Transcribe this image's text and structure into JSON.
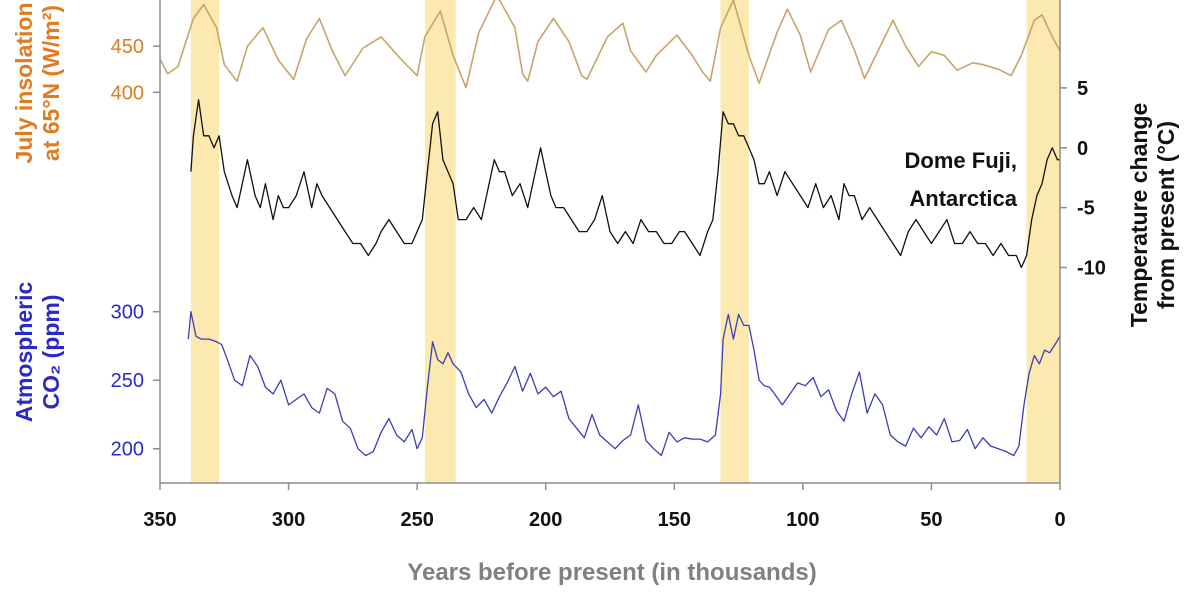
{
  "chart_data": {
    "type": "line",
    "x_axis": {
      "label": "Years before present (in thousands)",
      "range": [
        350,
        0
      ],
      "ticks": [
        350,
        300,
        250,
        200,
        150,
        100,
        50,
        0
      ],
      "reversed": true
    },
    "axes": {
      "insolation": {
        "title_line1": "July insolation",
        "title_line2": "at 65°N (W/m²)",
        "range": [
          370,
          500
        ],
        "ticks": [
          400,
          450
        ]
      },
      "co2": {
        "title_line1": "Atmospheric",
        "title_line2": "CO₂ (ppm)",
        "range": [
          175,
          345
        ],
        "ticks": [
          200,
          250,
          300
        ]
      },
      "temperature": {
        "title_line1": "Temperature change",
        "title_line2": "from present (°C)",
        "range": [
          -28,
          9
        ],
        "ticks": [
          5,
          0,
          -5,
          -10
        ]
      }
    },
    "annotation": {
      "line1": "Dome Fuji,",
      "line2": "Antarctica"
    },
    "colors": {
      "insolation": "#c8a46a",
      "insolation_axis": "#e07b20",
      "temperature": "#111111",
      "co2": "#3d3db8",
      "co2_axis": "#2a2ac8",
      "interglacial_band": "#fbe9b0",
      "axis_label": "#808080"
    },
    "interglacial_bands": [
      [
        338,
        327
      ],
      [
        247,
        235
      ],
      [
        132,
        121
      ],
      [
        13,
        0
      ]
    ],
    "series": [
      {
        "key": "insolation",
        "axis": "insolation",
        "x": [
          350,
          347,
          343,
          337,
          333,
          328,
          325,
          320,
          316,
          310,
          304,
          298,
          293,
          288,
          283,
          278,
          271,
          264,
          256,
          250,
          247,
          241,
          236,
          231,
          226,
          219,
          212,
          209,
          207,
          203,
          197,
          191,
          186,
          184,
          176,
          170,
          167,
          161,
          157,
          149,
          143,
          139,
          136,
          132,
          127,
          121,
          117,
          110,
          106,
          101,
          97,
          90,
          85,
          80,
          76,
          69,
          65,
          60,
          55,
          50,
          45,
          40,
          34,
          30,
          24,
          19,
          15,
          10,
          7,
          3,
          0
        ],
        "y": [
          436,
          420,
          428,
          480,
          495,
          470,
          430,
          412,
          450,
          470,
          435,
          414,
          458,
          480,
          445,
          418,
          448,
          460,
          435,
          418,
          460,
          488,
          440,
          405,
          465,
          505,
          470,
          420,
          412,
          455,
          480,
          455,
          418,
          414,
          460,
          475,
          445,
          422,
          440,
          462,
          440,
          422,
          412,
          470,
          500,
          440,
          410,
          465,
          490,
          462,
          422,
          468,
          478,
          446,
          415,
          455,
          478,
          450,
          428,
          444,
          440,
          424,
          432,
          430,
          425,
          418,
          440,
          478,
          484,
          460,
          445
        ]
      },
      {
        "key": "temperature",
        "axis": "temperature",
        "x": [
          338,
          337,
          335,
          333,
          331,
          329,
          327,
          325,
          322,
          320,
          318,
          316,
          313,
          311,
          309,
          306,
          304,
          302,
          300,
          297,
          294,
          291,
          289,
          287,
          284,
          281,
          278,
          275,
          272,
          269,
          266,
          264,
          261,
          258,
          255,
          252,
          250,
          248,
          246,
          244,
          242,
          240,
          238,
          236,
          234,
          231,
          228,
          225,
          222,
          220,
          218,
          216,
          213,
          210,
          207,
          204,
          202,
          200,
          198,
          196,
          193,
          190,
          187,
          184,
          181,
          178,
          175,
          172,
          169,
          166,
          163,
          160,
          157,
          154,
          151,
          148,
          146,
          143,
          140,
          137,
          135,
          133,
          131,
          129,
          127,
          125,
          123,
          121,
          119,
          117,
          115,
          113,
          110,
          107,
          104,
          101,
          98,
          95,
          92,
          89,
          86,
          84,
          82,
          80,
          77,
          74,
          71,
          68,
          65,
          62,
          59,
          56,
          53,
          50,
          47,
          44,
          41,
          38,
          35,
          32,
          29,
          26,
          23,
          20,
          17,
          15,
          13,
          11,
          9,
          7,
          5,
          3,
          1,
          0
        ],
        "y": [
          -2,
          1,
          4,
          1,
          1,
          0,
          1,
          -2,
          -4,
          -5,
          -3,
          -1,
          -4,
          -5,
          -3,
          -6,
          -4,
          -5,
          -5,
          -4,
          -2,
          -5,
          -3,
          -4,
          -5,
          -6,
          -7,
          -8,
          -8,
          -9,
          -8,
          -7,
          -6,
          -7,
          -8,
          -8,
          -7,
          -6,
          -2,
          2,
          3,
          -1,
          -2,
          -3,
          -6,
          -6,
          -5,
          -6,
          -3,
          -1,
          -2,
          -2,
          -4,
          -3,
          -5,
          -2,
          0,
          -2,
          -4,
          -5,
          -5,
          -6,
          -7,
          -7,
          -6,
          -4,
          -7,
          -8,
          -7,
          -8,
          -6,
          -7,
          -7,
          -8,
          -8,
          -7,
          -7,
          -8,
          -9,
          -7,
          -6,
          -2,
          3,
          2,
          2,
          1,
          1,
          0,
          -1,
          -3,
          -3,
          -2,
          -4,
          -2,
          -3,
          -4,
          -5,
          -3,
          -5,
          -4,
          -6,
          -3,
          -4,
          -4,
          -6,
          -5,
          -6,
          -7,
          -8,
          -9,
          -7,
          -6,
          -7,
          -8,
          -7,
          -6,
          -8,
          -8,
          -7,
          -8,
          -8,
          -9,
          -8,
          -9,
          -9,
          -10,
          -9,
          -6,
          -4,
          -3,
          -1,
          0,
          -1,
          -1
        ]
      },
      {
        "key": "co2",
        "axis": "co2",
        "x": [
          339,
          338,
          336,
          334,
          331,
          328,
          326,
          324,
          321,
          318,
          315,
          312,
          309,
          306,
          303,
          300,
          297,
          294,
          291,
          288,
          285,
          282,
          279,
          276,
          273,
          270,
          267,
          264,
          261,
          258,
          255,
          252,
          250,
          248,
          246,
          244,
          242,
          240,
          238,
          236,
          233,
          230,
          227,
          224,
          221,
          218,
          215,
          212,
          209,
          206,
          203,
          200,
          197,
          194,
          191,
          188,
          185,
          182,
          179,
          176,
          173,
          170,
          167,
          164,
          161,
          158,
          155,
          152,
          149,
          146,
          143,
          140,
          137,
          134,
          132,
          131,
          129,
          127,
          125,
          123,
          121,
          119,
          117,
          115,
          113,
          111,
          108,
          105,
          102,
          99,
          96,
          93,
          90,
          87,
          84,
          81,
          78,
          75,
          72,
          69,
          66,
          63,
          60,
          57,
          54,
          51,
          48,
          45,
          42,
          39,
          36,
          33,
          30,
          27,
          24,
          21,
          18,
          16,
          14,
          12,
          10,
          8,
          6,
          4,
          2,
          0
        ],
        "y": [
          280,
          300,
          282,
          280,
          280,
          278,
          276,
          266,
          250,
          246,
          268,
          260,
          245,
          240,
          250,
          232,
          236,
          240,
          230,
          226,
          244,
          240,
          220,
          215,
          200,
          195,
          198,
          212,
          222,
          210,
          205,
          214,
          200,
          208,
          245,
          278,
          265,
          262,
          270,
          262,
          256,
          240,
          230,
          236,
          226,
          238,
          248,
          260,
          242,
          255,
          240,
          245,
          238,
          242,
          222,
          215,
          208,
          225,
          210,
          205,
          200,
          206,
          210,
          232,
          206,
          200,
          195,
          212,
          205,
          208,
          207,
          207,
          205,
          210,
          240,
          280,
          298,
          280,
          298,
          290,
          290,
          272,
          250,
          246,
          245,
          240,
          232,
          240,
          248,
          246,
          252,
          238,
          243,
          228,
          220,
          240,
          256,
          226,
          240,
          232,
          210,
          205,
          202,
          215,
          208,
          216,
          210,
          222,
          205,
          206,
          214,
          200,
          208,
          202,
          200,
          198,
          195,
          202,
          232,
          255,
          268,
          262,
          272,
          270,
          276,
          282
        ]
      }
    ]
  }
}
